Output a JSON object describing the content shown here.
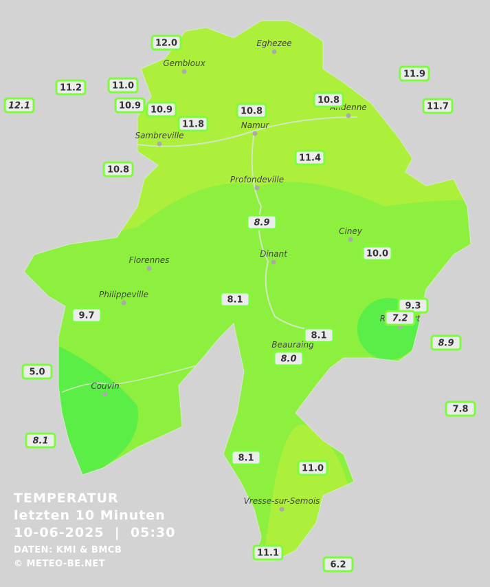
{
  "header": {
    "title": "TEMPERATUR",
    "subtitle": "letzten 10 Minuten",
    "timestamp": "10-06-2025  |  05:30",
    "source": "DATEN: KMI & BMCB",
    "copyright": "© METEO-BE.NET"
  },
  "towns": [
    "Eghezee",
    "Gembloux",
    "Andenne",
    "Namur",
    "Sambreville",
    "Profondeville",
    "Ciney",
    "Dinant",
    "Florennes",
    "Philippeville",
    "Rochefort",
    "Beauraing",
    "Couvin",
    "Vresse-sur-Semois"
  ],
  "readings": [
    "12.0",
    "11.2",
    "11.0",
    "12.1",
    "10.9",
    "10.9",
    "11.8",
    "10.8",
    "10.8",
    "11.9",
    "11.7",
    "10.8",
    "11.4",
    "8.9",
    "10.0",
    "8.1",
    "9.7",
    "9.3",
    "7.2",
    "8.9",
    "8.1",
    "8.0",
    "5.0",
    "7.8",
    "8.1",
    "8.1",
    "11.0",
    "11.1",
    "6.2"
  ]
}
